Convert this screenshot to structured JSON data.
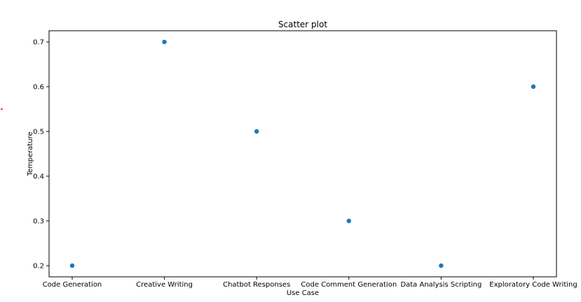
{
  "chart_data": {
    "type": "scatter",
    "title": "Scatter plot",
    "xlabel": "Use Case",
    "ylabel": "Temperature",
    "categories": [
      "Code Generation",
      "Creative Writing",
      "Chatbot Responses",
      "Code Comment Generation",
      "Data Analysis Scripting",
      "Exploratory Code Writing"
    ],
    "values": [
      0.2,
      0.7,
      0.5,
      0.3,
      0.2,
      0.6
    ],
    "yticks": [
      "0.2",
      "0.3",
      "0.4",
      "0.5",
      "0.6",
      "0.7"
    ],
    "ylim": [
      0.175,
      0.725
    ],
    "grid": false,
    "legend": "none",
    "marker_color": "#1f77b4",
    "stray_mark_color": "#d62728"
  }
}
